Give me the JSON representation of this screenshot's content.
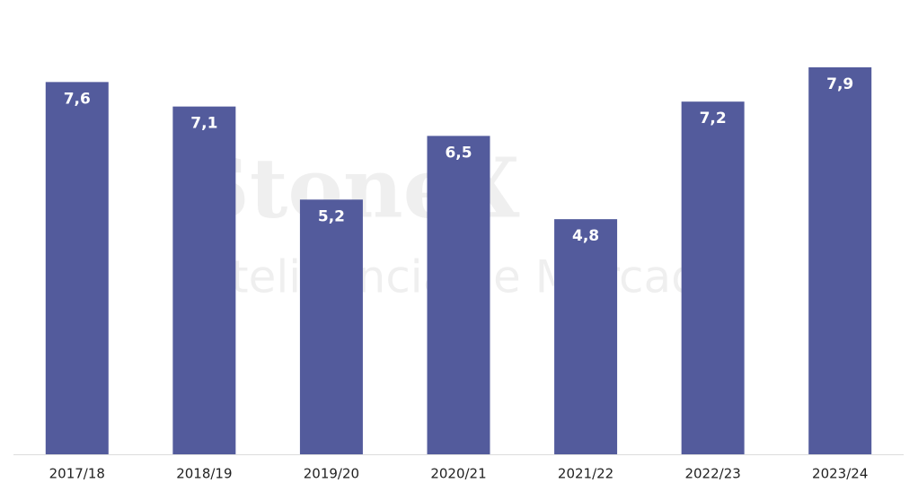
{
  "chart_data": {
    "type": "bar",
    "categories": [
      "2017/18",
      "2018/19",
      "2019/20",
      "2020/21",
      "2021/22",
      "2022/23",
      "2023/24"
    ],
    "values": [
      7.6,
      7.1,
      5.2,
      6.5,
      4.8,
      7.2,
      7.9
    ],
    "value_labels": [
      "7,6",
      "7,1",
      "5,2",
      "6,5",
      "4,8",
      "7,2",
      "7,9"
    ],
    "color": "#535b9c",
    "watermark": {
      "brand": "StoneX",
      "tagline": "Inteligência de Mercado"
    }
  }
}
